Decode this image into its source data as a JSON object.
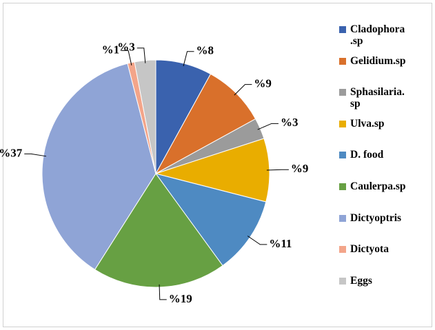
{
  "chart_data": {
    "type": "pie",
    "categories": [
      "Cladophora .sp",
      "Gelidium.sp",
      "Sphasilaria. sp",
      "Ulva.sp",
      "D. food",
      "Caulerpa.sp",
      "Dictyoptris",
      "Dictyota",
      "Eggs"
    ],
    "values": [
      8,
      9,
      3,
      9,
      11,
      19,
      37,
      1,
      3
    ],
    "value_labels": [
      "%8",
      "%9",
      "%3",
      "%9",
      "%11",
      "%19",
      "%37",
      "%1",
      "%3"
    ],
    "colors": [
      "#3a62ae",
      "#d9702b",
      "#9b9b9b",
      "#e9ad00",
      "#4e8ac2",
      "#67a043",
      "#8fa4d6",
      "#f3a58a",
      "#c6c6c6"
    ],
    "legend": "right"
  }
}
